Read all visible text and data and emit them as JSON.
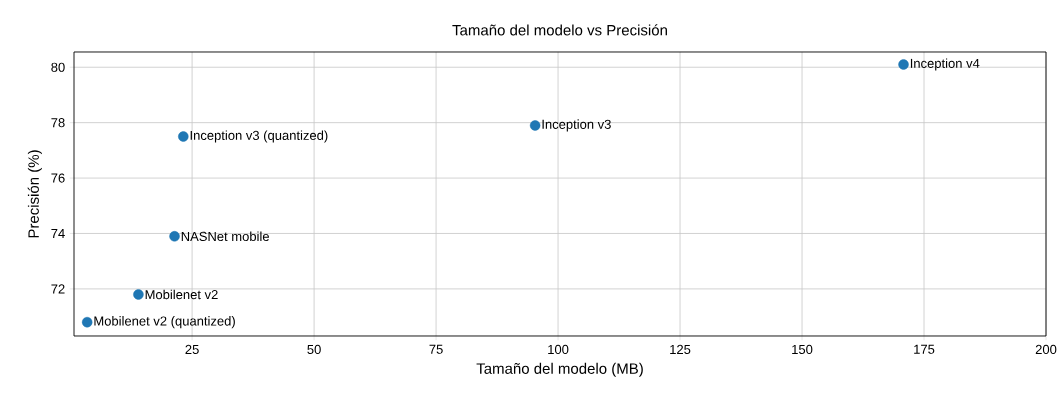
{
  "chart_data": {
    "type": "scatter",
    "title": "Tamaño del modelo vs Precisión",
    "xlabel": "Tamaño del modelo (MB)",
    "ylabel": "Precisión (%)",
    "x": [
      3.5,
      14,
      21.4,
      23.2,
      95.3,
      170.8
    ],
    "series": [
      {
        "color": "#1f77b4",
        "values": [
          70.8,
          71.8,
          73.9,
          77.5,
          77.9,
          80.1
        ]
      }
    ],
    "annotations": [
      {
        "text": "Mobilenet v2 (quantized)",
        "x": 3.5,
        "y": 70.8
      },
      {
        "text": "Mobilenet v2",
        "x": 14,
        "y": 71.8
      },
      {
        "text": "NASNet mobile",
        "x": 21.4,
        "y": 73.9
      },
      {
        "text": "Inception v3 (quantized)",
        "x": 23.2,
        "y": 77.5
      },
      {
        "text": "Inception v3",
        "x": 95.3,
        "y": 77.9
      },
      {
        "text": "Inception v4",
        "x": 170.8,
        "y": 80.1
      }
    ],
    "xlim": [
      0.8,
      200
    ],
    "ylim": [
      70.3,
      80.55
    ],
    "xticks": [
      25,
      50,
      75,
      100,
      125,
      150,
      175,
      200
    ],
    "yticks": [
      72,
      74,
      76,
      78,
      80
    ],
    "grid": true
  }
}
